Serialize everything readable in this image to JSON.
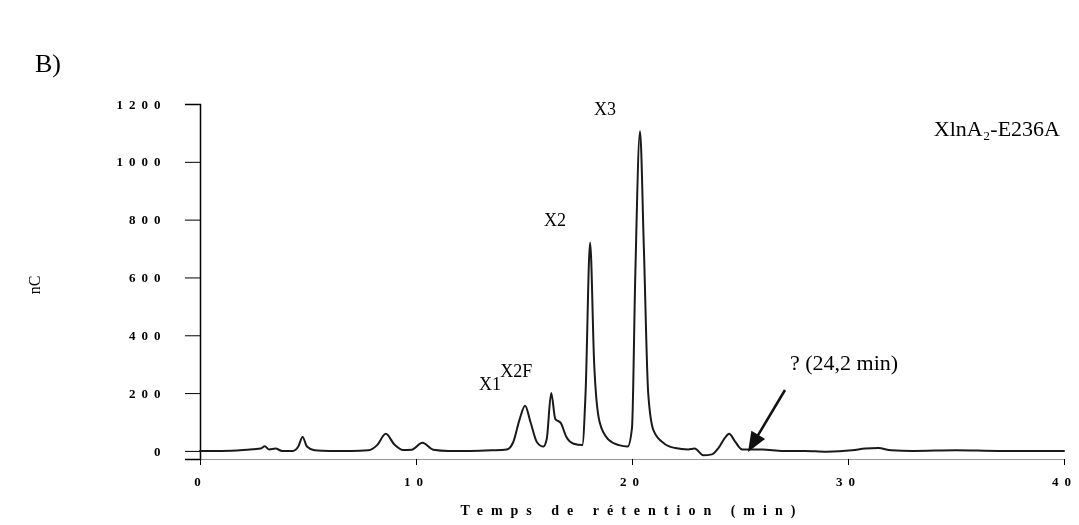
{
  "chart_data": {
    "type": "line",
    "title": "B)",
    "subtitle": "XlnA₂-E236A",
    "xlabel": "Temps de rétention (min)",
    "ylabel": "nC",
    "xlim": [
      0,
      40
    ],
    "xticks": [
      0,
      10,
      20,
      30,
      40
    ],
    "ylim": [
      -28,
      1200
    ],
    "yticks": [
      0,
      200,
      400,
      600,
      800,
      1000,
      1200
    ],
    "grid": false,
    "marker": "none",
    "line_style": "solid",
    "series": [
      {
        "color": "#1a1a1a",
        "x": [
          0,
          1,
          2,
          2.5,
          2.8,
          3.0,
          3.2,
          3.5,
          3.8,
          4.3,
          4.55,
          4.75,
          4.95,
          5.3,
          6,
          7,
          7.8,
          8.2,
          8.6,
          9.0,
          9.4,
          9.8,
          10.3,
          10.8,
          11.5,
          12.5,
          13.5,
          14.2,
          14.5,
          14.8,
          15.05,
          15.3,
          15.6,
          15.9,
          16.05,
          16.26,
          16.45,
          16.7,
          16.95,
          17.3,
          17.7,
          17.85,
          18.06,
          18.25,
          18.5,
          18.9,
          19.4,
          19.8,
          20.0,
          20.15,
          20.37,
          20.55,
          20.75,
          21.0,
          21.5,
          22,
          22.6,
          22.9,
          23.3,
          23.7,
          24.0,
          24.3,
          24.5,
          24.75,
          25.1,
          26,
          27,
          28,
          29,
          30.2,
          30.8,
          31.4,
          32,
          33,
          35,
          37,
          40
        ],
        "values": [
          0,
          0,
          3,
          6,
          8,
          16,
          5,
          8,
          0,
          0,
          15,
          48,
          15,
          2,
          0,
          0,
          2,
          20,
          59,
          22,
          3,
          4,
          28,
          4,
          0,
          0,
          2,
          5,
          30,
          110,
          156,
          100,
          30,
          15,
          40,
          200,
          110,
          97,
          50,
          25,
          20,
          200,
          721,
          300,
          100,
          40,
          20,
          15,
          80,
          600,
          1106,
          700,
          200,
          70,
          25,
          10,
          5,
          8,
          -15,
          -12,
          10,
          45,
          59,
          35,
          5,
          5,
          0,
          0,
          -3,
          2,
          8,
          10,
          2,
          0,
          2,
          0,
          0
        ]
      }
    ],
    "annotations": [
      {
        "text": "X1",
        "x": 15.05,
        "y": 156
      },
      {
        "text": "X2F",
        "x": 16.26,
        "y": 200
      },
      {
        "text": "X2",
        "x": 18.06,
        "y": 721
      },
      {
        "text": "X3",
        "x": 20.37,
        "y": 1106
      },
      "? (24,2 min)"
    ]
  }
}
